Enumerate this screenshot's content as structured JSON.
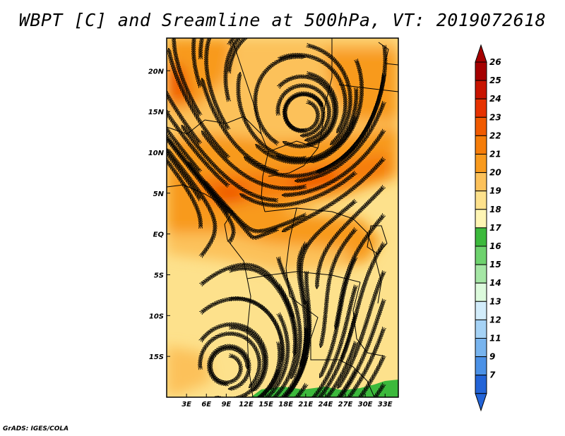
{
  "title": "WBPT [C] and Sreamline at 500hPa, VT: 2019072618",
  "credit": "GrADS: IGES/COLA",
  "map": {
    "region": "Central/East Africa",
    "variable": "WBPT [C]",
    "overlay": "Streamlines",
    "level": "500hPa",
    "valid_time": "2019072618",
    "lon_range": [
      0,
      35
    ],
    "lat_range": [
      -20,
      24
    ],
    "lon_ticks": [
      {
        "value": 3,
        "label": "3E"
      },
      {
        "value": 6,
        "label": "6E"
      },
      {
        "value": 9,
        "label": "9E"
      },
      {
        "value": 12,
        "label": "12E"
      },
      {
        "value": 15,
        "label": "15E"
      },
      {
        "value": 18,
        "label": "18E"
      },
      {
        "value": 21,
        "label": "21E"
      },
      {
        "value": 24,
        "label": "24E"
      },
      {
        "value": 27,
        "label": "27E"
      },
      {
        "value": 30,
        "label": "30E"
      },
      {
        "value": 33,
        "label": "33E"
      }
    ],
    "lat_ticks": [
      {
        "value": 20,
        "label": "20N"
      },
      {
        "value": 15,
        "label": "15N"
      },
      {
        "value": 10,
        "label": "10N"
      },
      {
        "value": 5,
        "label": "5N"
      },
      {
        "value": 0,
        "label": "EQ"
      },
      {
        "value": -5,
        "label": "5S"
      },
      {
        "value": -10,
        "label": "10S"
      },
      {
        "value": -15,
        "label": "15S"
      }
    ]
  },
  "colorbar": {
    "levels": [
      {
        "label": "26",
        "color": "#a50000"
      },
      {
        "label": "25",
        "color": "#c81400"
      },
      {
        "label": "24",
        "color": "#e63200"
      },
      {
        "label": "23",
        "color": "#f05a00"
      },
      {
        "label": "22",
        "color": "#f57d0a"
      },
      {
        "label": "21",
        "color": "#f89a1e"
      },
      {
        "label": "20",
        "color": "#fcc15a"
      },
      {
        "label": "19",
        "color": "#fde18c"
      },
      {
        "label": "18",
        "color": "#fef5b4"
      },
      {
        "label": "17",
        "color": "#3cb93c"
      },
      {
        "label": "16",
        "color": "#6ed26e"
      },
      {
        "label": "15",
        "color": "#a5e6a5"
      },
      {
        "label": "14",
        "color": "#dcfadc"
      },
      {
        "label": "13",
        "color": "#d2ecfa"
      },
      {
        "label": "12",
        "color": "#a5d2f5"
      },
      {
        "label": "11",
        "color": "#78b4ee"
      },
      {
        "label": "9",
        "color": "#4b91e6"
      },
      {
        "label": "7",
        "color": "#2364d7"
      }
    ],
    "below_color": "#2364d7"
  }
}
